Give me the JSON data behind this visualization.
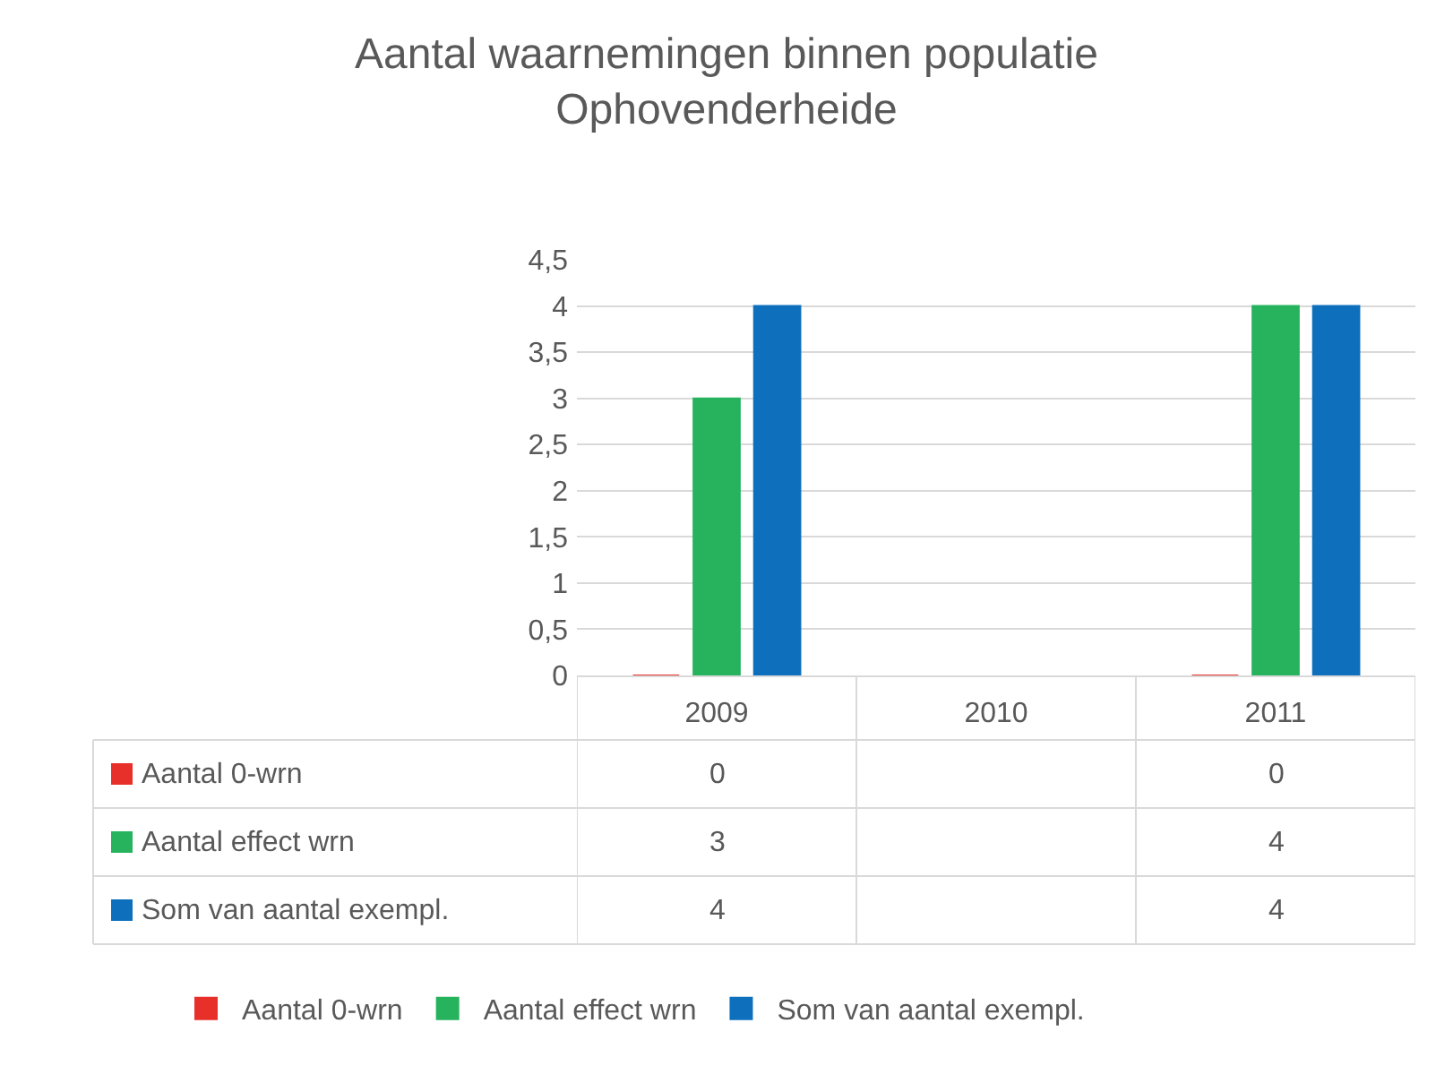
{
  "chart_data": {
    "type": "bar",
    "title": "Aantal waarnemingen binnen populatie\nOphovenderheide",
    "categories": [
      "2009",
      "2010",
      "2011"
    ],
    "series": [
      {
        "name": "Aantal 0-wrn",
        "color": "#e8302a",
        "values": [
          0,
          null,
          0
        ]
      },
      {
        "name": "Aantal effect wrn",
        "color": "#27b35e",
        "values": [
          3,
          null,
          4
        ]
      },
      {
        "name": "Som van aantal exempl.",
        "color": "#0e70bd",
        "values": [
          4,
          null,
          4
        ]
      }
    ],
    "ylim": [
      0,
      4.5
    ],
    "yticks": [
      0,
      {
        "value": 0.5,
        "label": "0,5"
      },
      1,
      {
        "value": 1.5,
        "label": "1,5"
      },
      2,
      {
        "value": 2.5,
        "label": "2,5"
      },
      3,
      {
        "value": 3.5,
        "label": "3,5"
      },
      4,
      {
        "value": 4.5,
        "label": "4,5"
      }
    ],
    "grid": "y",
    "legend": "bottom",
    "data_labels": true
  }
}
